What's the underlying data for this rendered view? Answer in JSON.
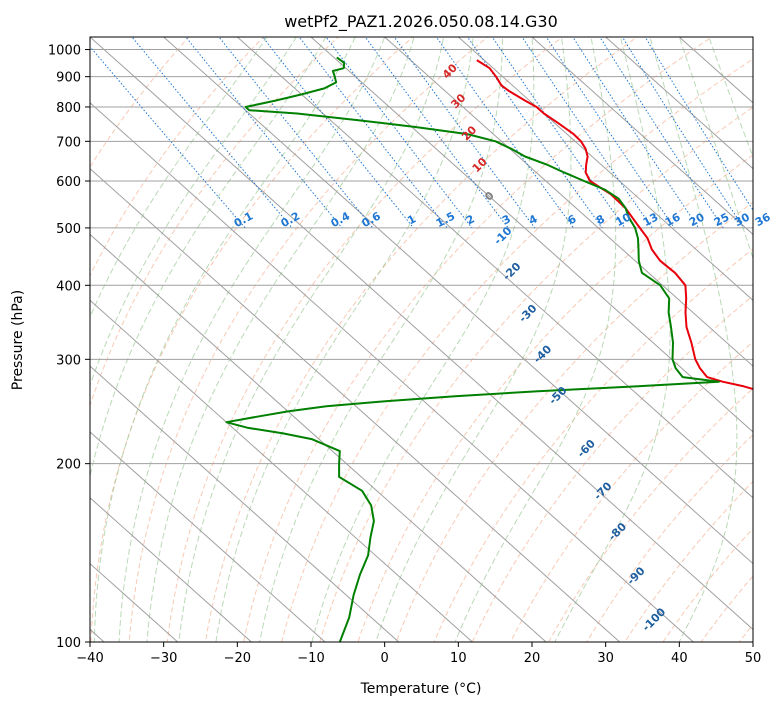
{
  "chart_data": {
    "type": "skew-t",
    "title": "wetPf2_PAZ1.2026.050.08.14.G30",
    "xlabel": "Temperature (°C)",
    "ylabel": "Pressure (hPa)",
    "xlim": [
      -40,
      50
    ],
    "ylim": [
      1050,
      100
    ],
    "x_ticks": [
      "−40",
      "−30",
      "−20",
      "−10",
      "0",
      "10",
      "20",
      "30",
      "40",
      "50"
    ],
    "y_ticks": [
      "100",
      "200",
      "300",
      "400",
      "500",
      "600",
      "700",
      "800",
      "900",
      "1000"
    ],
    "skew_deg_per_decade": 90,
    "series": [
      {
        "name": "temperature",
        "color": "#e8000b",
        "p": [
          960,
          930,
          900,
          870,
          850,
          820,
          800,
          780,
          750,
          720,
          700,
          680,
          660,
          640,
          620,
          600,
          570,
          540,
          510,
          480,
          460,
          440,
          420,
          400,
          380,
          360,
          340,
          320,
          300,
          290,
          280,
          275,
          270,
          265,
          260,
          255,
          250,
          245,
          240,
          235,
          230,
          225,
          220,
          200,
          180,
          170,
          160,
          150,
          140,
          130,
          120,
          110,
          100
        ],
        "t": [
          9,
          9.5,
          9.1,
          8.5,
          8.7,
          9.4,
          10,
          10,
          10.5,
          10.9,
          10.8,
          10.3,
          9.4,
          8,
          6.7,
          6,
          6.8,
          6.7,
          5.9,
          5.1,
          4,
          3.4,
          3.6,
          3.1,
          1.2,
          -1,
          -3.1,
          -4.8,
          -6.8,
          -7.5,
          -7.9,
          -6.5,
          -4.3,
          -2.8,
          -1.4,
          -0.6,
          0,
          0.5,
          0.9,
          1.1,
          1.2,
          1.0,
          0.8,
          -1.5,
          -5,
          -7.5,
          -10,
          -13,
          -16.5,
          -20,
          -24,
          -29,
          -35
        ]
      },
      {
        "name": "dewpoint",
        "color": "#008000",
        "p": [
          970,
          950,
          930,
          920,
          900,
          880,
          860,
          840,
          820,
          800,
          790,
          780,
          760,
          740,
          720,
          700,
          680,
          660,
          640,
          620,
          600,
          580,
          560,
          540,
          520,
          500,
          480,
          460,
          440,
          420,
          400,
          380,
          360,
          340,
          320,
          300,
          290,
          280,
          275,
          270,
          265,
          260,
          255,
          250,
          245,
          240,
          235,
          230,
          225,
          220,
          210,
          200,
          190,
          180,
          170,
          160,
          150,
          140,
          130,
          120,
          110,
          100
        ],
        "t": [
          -9.6,
          -9.4,
          -10.3,
          -12.2,
          -12.8,
          -13.5,
          -16,
          -20,
          -24.5,
          -29.5,
          -29.5,
          -23.5,
          -16.2,
          -9.5,
          -3.5,
          -0.8,
          0.2,
          0.9,
          2.6,
          3.8,
          5.2,
          6.7,
          7.2,
          6.7,
          5.7,
          5.0,
          3.8,
          2.2,
          0.5,
          -0.9,
          -0.3,
          -1.1,
          -3.3,
          -5.2,
          -7.3,
          -9.9,
          -10.8,
          -11.2,
          -7,
          -19,
          -33,
          -45,
          -55,
          -64,
          -70,
          -75,
          -80,
          -78,
          -74,
          -71,
          -69,
          -71,
          -73,
          -72,
          -73,
          -75,
          -78,
          -81,
          -85,
          -89,
          -93,
          -98
        ]
      }
    ],
    "mixing_ratio_labels": [
      "0.1",
      "0.2",
      "0.4",
      "0.6",
      "1",
      "1.5",
      "2",
      "3",
      "4",
      "6",
      "8",
      "10",
      "13",
      "16",
      "20",
      "25",
      "30",
      "36"
    ],
    "moist_adiabat_labels": [
      "-100",
      "-90",
      "-80",
      "-70",
      "-60",
      "-50",
      "-40",
      "-30",
      "-20",
      "-10",
      "0",
      "10",
      "20",
      "30",
      "40"
    ],
    "colors": {
      "temperature": "#e8000b",
      "dewpoint": "#008000",
      "isotherm": "#a0a0a0",
      "isobar": "#a0a0a0",
      "dry_adiabat": "#f4a582",
      "moist_adiabat": "#9bc995",
      "mixing_ratio": "#1f77d4",
      "lcl_line": "#cfae8a",
      "moist_label_cold": "#1f5f9f",
      "moist_label_zero": "#808080",
      "moist_label_warm": "#d62728"
    }
  }
}
